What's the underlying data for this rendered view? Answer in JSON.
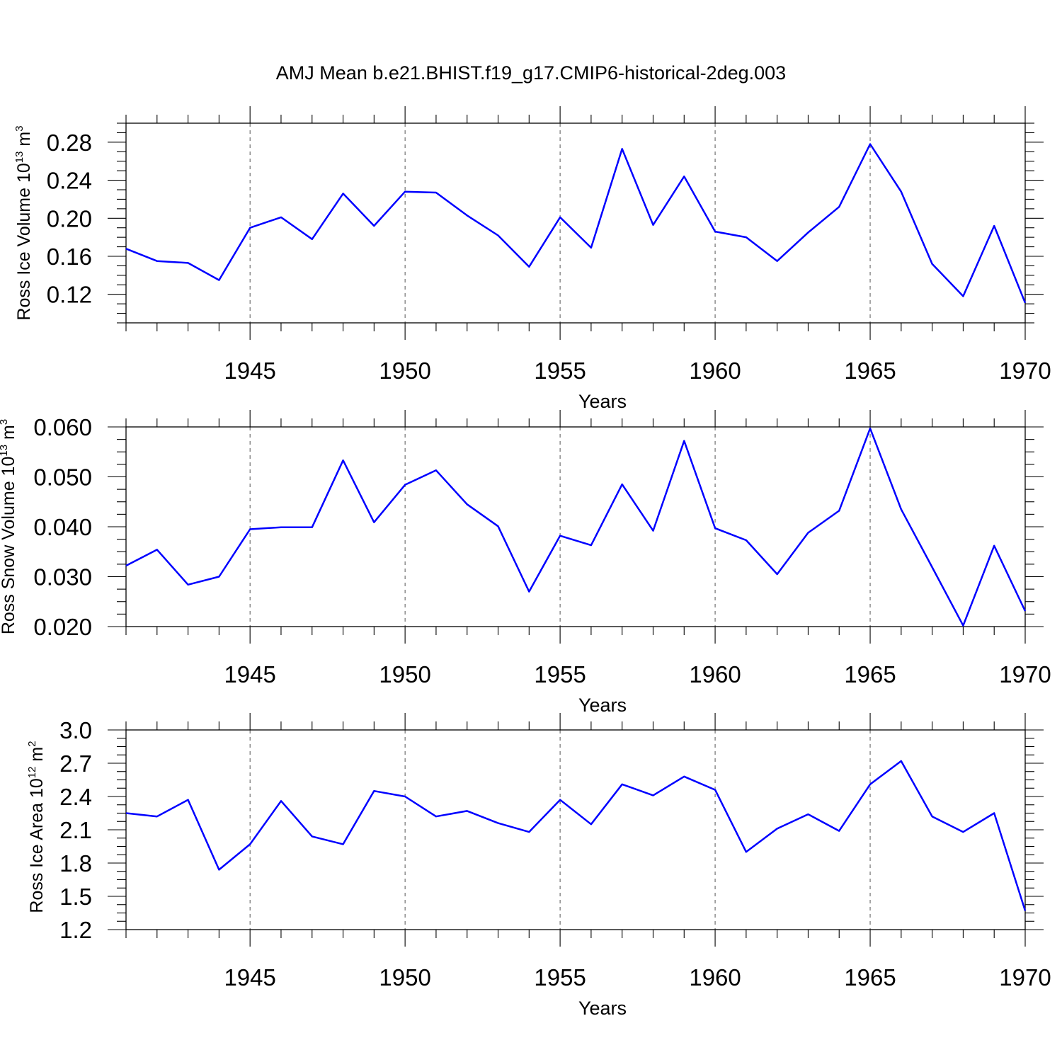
{
  "figure": {
    "title": "AMJ Mean b.e21.BHIST.f19_g17.CMIP6-historical-2deg.003"
  },
  "chart_data": [
    {
      "type": "line",
      "title": "",
      "xlabel": "Years",
      "ylabel": "Ross Ice Volume 10",
      "ylabel_exp": "13",
      "ylabel_unit": " m",
      "ylabel_unit_exp": "3",
      "xlim": [
        1941,
        1970
      ],
      "ylim": [
        0.09,
        0.3
      ],
      "xticks": [
        1945,
        1950,
        1955,
        1960,
        1965,
        1970
      ],
      "yticks": [
        "0.12",
        "0.16",
        "0.20",
        "0.24",
        "0.28"
      ],
      "x_gridlines": [
        1945,
        1950,
        1955,
        1960,
        1965
      ],
      "grid": "vertical dashed",
      "color": "#0000ff",
      "x": [
        1941,
        1942,
        1943,
        1944,
        1945,
        1946,
        1947,
        1948,
        1949,
        1950,
        1951,
        1952,
        1953,
        1954,
        1955,
        1956,
        1957,
        1958,
        1959,
        1960,
        1961,
        1962,
        1963,
        1964,
        1965,
        1966,
        1967,
        1968,
        1969,
        1970
      ],
      "values": [
        0.168,
        0.155,
        0.153,
        0.135,
        0.19,
        0.201,
        0.178,
        0.226,
        0.192,
        0.228,
        0.227,
        0.203,
        0.182,
        0.149,
        0.201,
        0.169,
        0.273,
        0.193,
        0.244,
        0.186,
        0.18,
        0.155,
        0.185,
        0.212,
        0.278,
        0.228,
        0.152,
        0.118,
        0.192,
        0.111
      ]
    },
    {
      "type": "line",
      "title": "",
      "xlabel": "Years",
      "ylabel": "Ross Snow Volume 10",
      "ylabel_exp": "13",
      "ylabel_unit": " m",
      "ylabel_unit_exp": "3",
      "xlim": [
        1941,
        1970
      ],
      "ylim": [
        0.02,
        0.06
      ],
      "xticks": [
        1945,
        1950,
        1955,
        1960,
        1965,
        1970
      ],
      "yticks": [
        "0.020",
        "0.030",
        "0.040",
        "0.050",
        "0.060"
      ],
      "x_gridlines": [
        1945,
        1950,
        1955,
        1960,
        1965
      ],
      "grid": "vertical dashed",
      "color": "#0000ff",
      "x": [
        1941,
        1942,
        1943,
        1944,
        1945,
        1946,
        1947,
        1948,
        1949,
        1950,
        1951,
        1952,
        1953,
        1954,
        1955,
        1956,
        1957,
        1958,
        1959,
        1960,
        1961,
        1962,
        1963,
        1964,
        1965,
        1966,
        1967,
        1968,
        1969,
        1970
      ],
      "values": [
        0.0322,
        0.0354,
        0.0284,
        0.03,
        0.0395,
        0.0399,
        0.0399,
        0.0533,
        0.0409,
        0.0484,
        0.0513,
        0.0445,
        0.0401,
        0.027,
        0.0382,
        0.0363,
        0.0485,
        0.0392,
        0.0572,
        0.0397,
        0.0373,
        0.0305,
        0.0388,
        0.0432,
        0.0597,
        0.0435,
        0.0319,
        0.0202,
        0.0362,
        0.0231
      ]
    },
    {
      "type": "line",
      "title": "",
      "xlabel": "Years",
      "ylabel": "Ross Ice Area 10",
      "ylabel_exp": "12",
      "ylabel_unit": " m",
      "ylabel_unit_exp": "2",
      "xlim": [
        1941,
        1970
      ],
      "ylim": [
        1.2,
        3.0
      ],
      "xticks": [
        1945,
        1950,
        1955,
        1960,
        1965,
        1970
      ],
      "yticks": [
        "1.2",
        "1.5",
        "1.8",
        "2.1",
        "2.4",
        "2.7",
        "3.0"
      ],
      "x_gridlines": [
        1945,
        1950,
        1955,
        1960,
        1965
      ],
      "grid": "vertical dashed",
      "color": "#0000ff",
      "x": [
        1941,
        1942,
        1943,
        1944,
        1945,
        1946,
        1947,
        1948,
        1949,
        1950,
        1951,
        1952,
        1953,
        1954,
        1955,
        1956,
        1957,
        1958,
        1959,
        1960,
        1961,
        1962,
        1963,
        1964,
        1965,
        1966,
        1967,
        1968,
        1969,
        1970
      ],
      "values": [
        2.25,
        2.22,
        2.37,
        1.74,
        1.97,
        2.36,
        2.04,
        1.97,
        2.45,
        2.4,
        2.22,
        2.27,
        2.16,
        2.08,
        2.37,
        2.15,
        2.51,
        2.41,
        2.58,
        2.46,
        1.9,
        2.11,
        2.24,
        2.09,
        2.51,
        2.72,
        2.22,
        2.08,
        2.25,
        1.37
      ]
    }
  ]
}
